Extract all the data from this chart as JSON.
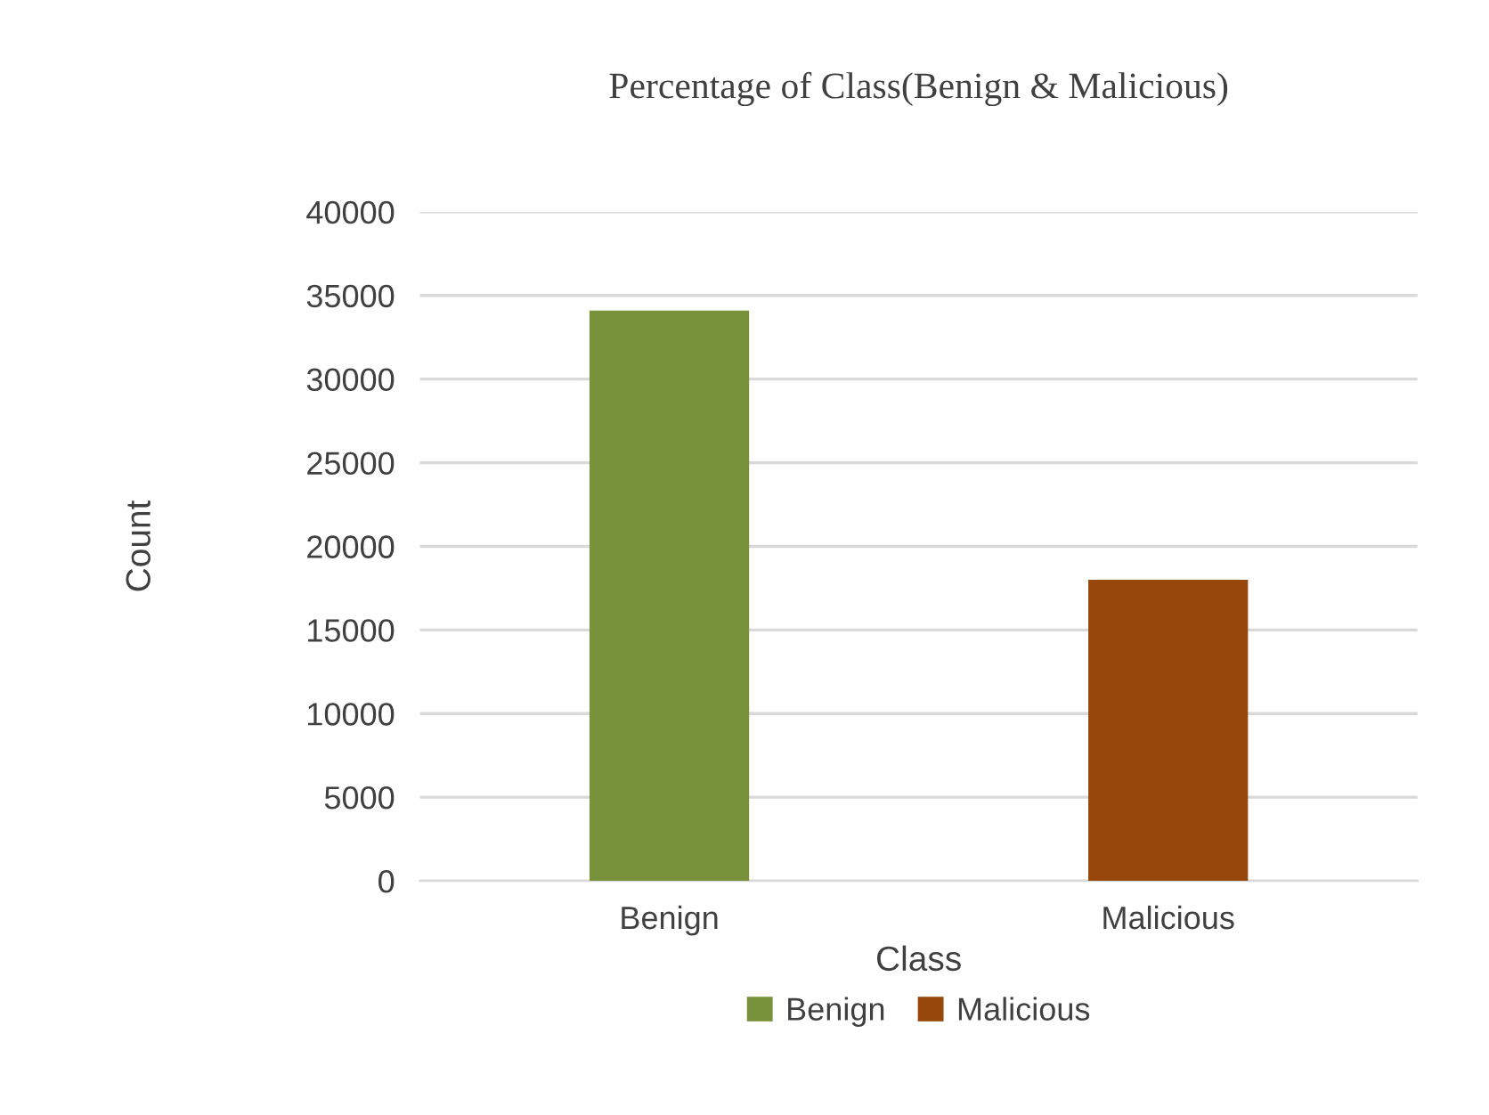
{
  "chart_data": {
    "type": "bar",
    "title": "Percentage of Class(Benign & Malicious)",
    "xlabel": "Class",
    "ylabel": "Count",
    "categories": [
      "Benign",
      "Malicious"
    ],
    "series": [
      {
        "name": "Benign",
        "color": "#78923b",
        "values": [
          34100,
          null
        ]
      },
      {
        "name": "Malicious",
        "color": "#974709",
        "values": [
          null,
          18000
        ]
      }
    ],
    "stacked": true,
    "ylim": [
      0,
      40000
    ],
    "yticks": [
      0,
      5000,
      10000,
      15000,
      20000,
      25000,
      30000,
      35000,
      40000
    ],
    "grid": "y",
    "legend": "bottom"
  }
}
